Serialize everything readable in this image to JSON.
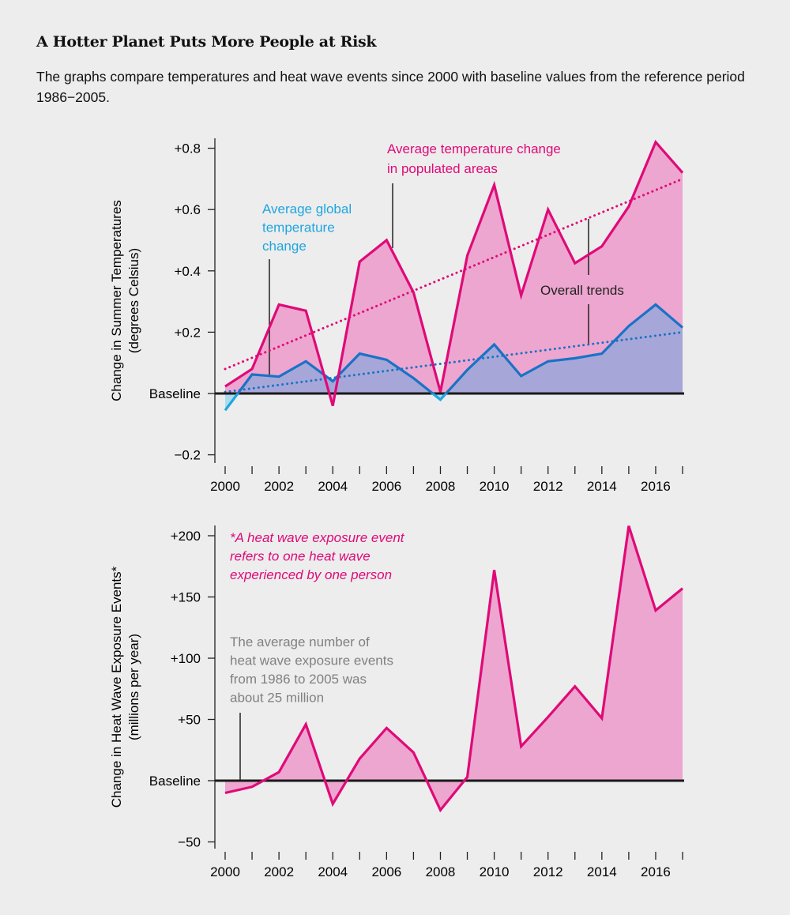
{
  "title": "A Hotter Planet Puts More People at Risk",
  "subtitle": "The graphs compare temperatures and heat wave events since 2000 with baseline values from the reference period 1986−2005.",
  "colors": {
    "populated": "#df0a78",
    "global": "#1a72c6",
    "global_label": "#1fa6df",
    "pink_fill": "#eda6cf",
    "blue_fill": "#a6a7d8",
    "cyan_fill": "#a9dcef",
    "note_gray": "#808080",
    "background": "#ededed"
  },
  "chart_data": [
    {
      "type": "area",
      "ylabel": [
        "Change in Summer Temperatures",
        "(degrees Celsius)"
      ],
      "x": [
        2000,
        2001,
        2002,
        2003,
        2004,
        2005,
        2006,
        2007,
        2008,
        2009,
        2010,
        2011,
        2012,
        2013,
        2014,
        2015,
        2016,
        2017
      ],
      "xticks": [
        "2000",
        "2002",
        "2004",
        "2006",
        "2008",
        "2010",
        "2012",
        "2014",
        "2016"
      ],
      "yticks": [
        {
          "v": 0.8,
          "label": "+0.8"
        },
        {
          "v": 0.6,
          "label": "+0.6"
        },
        {
          "v": 0.4,
          "label": "+0.4"
        },
        {
          "v": 0.2,
          "label": "+0.2"
        },
        {
          "v": 0,
          "label": "Baseline"
        },
        {
          "v": -0.2,
          "label": "−0.2"
        }
      ],
      "ylim": [
        -0.2,
        0.8
      ],
      "series": [
        {
          "name": "Average temperature change in populated areas",
          "label_lines": [
            "Average temperature change",
            "in populated areas"
          ],
          "values": [
            0.023,
            0.08,
            0.29,
            0.27,
            -0.04,
            0.43,
            0.5,
            0.33,
            0.005,
            0.45,
            0.68,
            0.32,
            0.6,
            0.425,
            0.48,
            0.61,
            0.82,
            0.72
          ],
          "trend": [
            0.08,
            0.7
          ]
        },
        {
          "name": "Average global temperature change",
          "label_lines": [
            "Average global",
            "temperature",
            "change"
          ],
          "values": [
            -0.055,
            0.062,
            0.055,
            0.105,
            0.04,
            0.13,
            0.11,
            0.05,
            -0.02,
            0.077,
            0.16,
            0.057,
            0.105,
            0.115,
            0.13,
            0.22,
            0.29,
            0.215
          ],
          "trend": [
            0.005,
            0.2
          ]
        }
      ],
      "annotations": {
        "trends": "Overall trends"
      }
    },
    {
      "type": "area",
      "ylabel": [
        "Change in Heat Wave Exposure Events*",
        "(millions per year)"
      ],
      "x": [
        2000,
        2001,
        2002,
        2003,
        2004,
        2005,
        2006,
        2007,
        2008,
        2009,
        2010,
        2011,
        2012,
        2013,
        2014,
        2015,
        2016,
        2017
      ],
      "xticks": [
        "2000",
        "2002",
        "2004",
        "2006",
        "2008",
        "2010",
        "2012",
        "2014",
        "2016"
      ],
      "yticks": [
        {
          "v": 200,
          "label": "+200"
        },
        {
          "v": 150,
          "label": "+150"
        },
        {
          "v": 100,
          "label": "+100"
        },
        {
          "v": 50,
          "label": "+50"
        },
        {
          "v": 0,
          "label": "Baseline"
        },
        {
          "v": -50,
          "label": "−50"
        }
      ],
      "ylim": [
        -50,
        200
      ],
      "series": [
        {
          "values": [
            -10,
            -5,
            7,
            46,
            -19,
            18,
            43,
            23,
            -24,
            3,
            172,
            28,
            52,
            77,
            51,
            208,
            139,
            157
          ]
        }
      ],
      "annotations": {
        "footnote": [
          "*A heat wave exposure event",
          "refers to one heat wave",
          "experienced by one person"
        ],
        "average_note": [
          "The average number of",
          "heat wave exposure events",
          "from 1986 to 2005 was",
          "about 25 million"
        ]
      }
    }
  ]
}
